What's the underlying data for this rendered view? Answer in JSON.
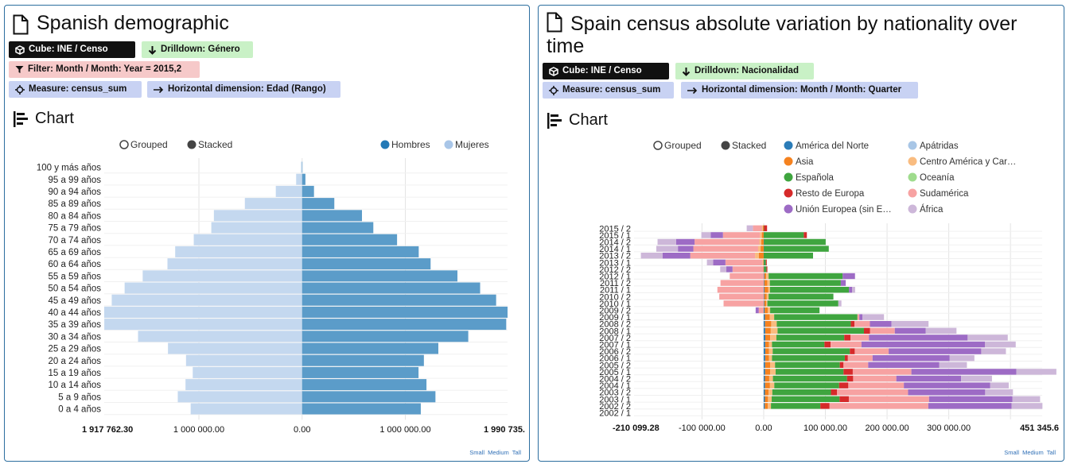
{
  "panel1": {
    "title": "Spanish demographic",
    "tags": {
      "cube": "Cube: INE / Censo",
      "drilldown": "Drilldown: Género",
      "filter": "Filter: Month / Month: Year = 2015,2",
      "measure": "Measure: census_sum",
      "horizontal": "Horizontal dimension: Edad (Rango)"
    },
    "chart_heading": "Chart",
    "controls": {
      "grouped": "Grouped",
      "stacked": "Stacked",
      "mode": "stacked"
    },
    "sizes": [
      "Small",
      "Medium",
      "Tall"
    ],
    "colors": {
      "Hombres": "#5b9cc9",
      "Mujeres": "#c4d8ef"
    }
  },
  "panel2": {
    "title": "Spain census absolute variation by nationality over time",
    "tags": {
      "cube": "Cube: INE / Censo",
      "drilldown": "Drilldown: Nacionalidad",
      "measure": "Measure: census_sum",
      "horizontal": "Horizontal dimension: Month / Month: Quarter"
    },
    "chart_heading": "Chart",
    "controls": {
      "grouped": "Grouped",
      "stacked": "Stacked",
      "mode": "stacked"
    },
    "sizes": [
      "Small",
      "Medium",
      "Tall"
    ],
    "colors": {
      "América del Norte": "#2b7cb8",
      "Apátridas": "#a8c6e6",
      "Asia": "#f5821f",
      "Centro América y Caribe": "#f9bc80",
      "Española": "#3fa53f",
      "Oceanía": "#9fdc8d",
      "Resto de Europa": "#d62a2a",
      "Sudamérica": "#f7a2a2",
      "Unión Europea (sin España)": "#9d6bc5",
      "África": "#cdb7d9"
    }
  },
  "chart_data": [
    {
      "type": "bar",
      "orientation": "horizontal",
      "layout": "population-pyramid",
      "categories": [
        "100 y más años",
        "95 a 99 años",
        "90 a 94 años",
        "85 a 89 años",
        "80 a 84 años",
        "75 a 79 años",
        "70 a 74 años",
        "65 a 69 años",
        "60 a 64 años",
        "55 a 59 años",
        "50 a 54 años",
        "45 a 49 años",
        "40 a 44 años",
        "35 a 39 años",
        "30 a 34 años",
        "25 a 29 años",
        "20 a 24 años",
        "15 a 19 años",
        "10 a 14 años",
        "5 a 9 años",
        "0 a 4 años"
      ],
      "series": [
        {
          "name": "Hombres",
          "values": [
            3500,
            32000,
            115000,
            312000,
            580000,
            690000,
            920000,
            1130000,
            1245000,
            1505000,
            1725000,
            1880000,
            1990735,
            1978000,
            1610000,
            1320000,
            1180000,
            1128000,
            1205000,
            1292000,
            1150000
          ]
        },
        {
          "name": "Mujeres",
          "values": [
            11000,
            58000,
            255000,
            555000,
            855000,
            880000,
            1050000,
            1230000,
            1305000,
            1545000,
            1720000,
            1845000,
            1917762.3,
            1917000,
            1590000,
            1300000,
            1125000,
            1060000,
            1130000,
            1205000,
            1080000
          ]
        }
      ],
      "legend": [
        "Hombres",
        "Mujeres"
      ],
      "x_ticks": [
        "1 917 762.30",
        "1 000 000.00",
        "0.00",
        "1 000 000.00",
        "1 990 735."
      ],
      "xlim": [
        -1917762.3,
        1990735
      ],
      "grid": true
    },
    {
      "type": "bar",
      "orientation": "horizontal",
      "stacked": true,
      "categories": [
        "2015 / 2",
        "2015 / 1",
        "2014 / 2",
        "2014 / 1",
        "2013 / 2",
        "2013 / 1",
        "2012 / 2",
        "2012 / 1",
        "2011 / 2",
        "2011 / 1",
        "2010 / 2",
        "2010 / 1",
        "2009 / 2",
        "2009 / 1",
        "2008 / 2",
        "2008 / 1",
        "2007 / 2",
        "2007 / 1",
        "2006 / 2",
        "2006 / 1",
        "2005 / 2",
        "2005 / 1",
        "2004 / 2",
        "2004 / 1",
        "2003 / 2",
        "2003 / 1",
        "2002 / 2",
        "2002 / 1"
      ],
      "series": [
        {
          "name": "América del Norte",
          "values": [
            0,
            0,
            500,
            500,
            0,
            500,
            500,
            1000,
            1000,
            1200,
            1000,
            1000,
            1500,
            2000,
            2200,
            2500,
            2600,
            2500,
            2600,
            2500,
            2400,
            2400,
            2000,
            2200,
            2000,
            2000,
            1800,
            0
          ]
        },
        {
          "name": "Apátridas",
          "values": [
            0,
            0,
            0,
            0,
            0,
            0,
            0,
            0,
            0,
            0,
            0,
            0,
            0,
            0,
            0,
            0,
            0,
            0,
            0,
            0,
            0,
            0,
            0,
            0,
            0,
            0,
            0,
            0
          ]
        },
        {
          "name": "Asia",
          "values": [
            -1500,
            -3000,
            -4000,
            -5000,
            -8000,
            -1000,
            -500,
            3000,
            5000,
            6000,
            4000,
            3000,
            5000,
            8000,
            10000,
            9000,
            8000,
            6000,
            6000,
            6000,
            8000,
            8000,
            7000,
            8000,
            6000,
            5000,
            5000,
            0
          ]
        },
        {
          "name": "Centro América y Caribe",
          "values": [
            -1000,
            -3000,
            -3000,
            -4000,
            -6000,
            -1000,
            0,
            4000,
            4000,
            3000,
            3000,
            2000,
            4000,
            7000,
            9000,
            11000,
            10000,
            5000,
            6000,
            5000,
            8000,
            9000,
            6000,
            7000,
            6000,
            6000,
            5000,
            0
          ]
        },
        {
          "name": "Española",
          "values": [
            500,
            65000,
            100000,
            105000,
            80000,
            3000,
            4000,
            120000,
            115000,
            128000,
            105000,
            115000,
            80000,
            135000,
            120000,
            140000,
            110000,
            85000,
            125000,
            118000,
            105000,
            110000,
            120000,
            105000,
            95000,
            110000,
            80000,
            0
          ]
        },
        {
          "name": "Oceanía",
          "values": [
            0,
            0,
            0,
            0,
            0,
            0,
            0,
            0,
            0,
            0,
            0,
            0,
            0,
            0,
            0,
            0,
            0,
            0,
            0,
            0,
            0,
            0,
            0,
            0,
            0,
            0,
            0,
            0
          ]
        },
        {
          "name": "Resto de Europa",
          "values": [
            5000,
            5000,
            0,
            0,
            0,
            1500,
            1500,
            0,
            0,
            0,
            0,
            0,
            0,
            0,
            6000,
            10000,
            10000,
            10000,
            8000,
            5000,
            6000,
            15000,
            10000,
            15000,
            10000,
            15000,
            15000,
            0
          ]
        },
        {
          "name": "Sudamérica",
          "values": [
            -15000,
            -60000,
            -105000,
            -105000,
            -105000,
            -60000,
            -50000,
            -55000,
            -70000,
            -75000,
            -72000,
            -65000,
            -8000,
            3000,
            25000,
            40000,
            30000,
            50000,
            55000,
            40000,
            40000,
            95000,
            70000,
            90000,
            115000,
            130000,
            160000,
            0
          ]
        },
        {
          "name": "Unión Europea (sin España)",
          "values": [
            0,
            -20000,
            -30000,
            -25000,
            -45000,
            -20000,
            -10000,
            20000,
            8000,
            5000,
            0,
            0,
            -5000,
            5000,
            35000,
            50000,
            160000,
            200000,
            150000,
            125000,
            115000,
            170000,
            105000,
            140000,
            125000,
            135000,
            135000,
            0
          ]
        },
        {
          "name": "África",
          "values": [
            -10000,
            -15000,
            -30000,
            -35000,
            -35000,
            -10000,
            -10000,
            0,
            0,
            5000,
            0,
            5000,
            0,
            35000,
            60000,
            50000,
            65000,
            50000,
            40000,
            40000,
            45000,
            65000,
            50000,
            30000,
            45000,
            45000,
            50000,
            0
          ]
        }
      ],
      "legend": [
        "América del Norte",
        "Apátridas",
        "Asia",
        "Centro América y Car…",
        "Española",
        "Oceanía",
        "Resto de Europa",
        "Sudamérica",
        "Unión Europea (sin E…",
        "África"
      ],
      "x_ticks": [
        "-210 099.28",
        "-100 000.00",
        "0.00",
        "100 000.00",
        "200 000.00",
        "300 000.00",
        "451 345.6"
      ],
      "xlim": [
        -210099.28,
        451345.6
      ],
      "grid": true
    }
  ]
}
